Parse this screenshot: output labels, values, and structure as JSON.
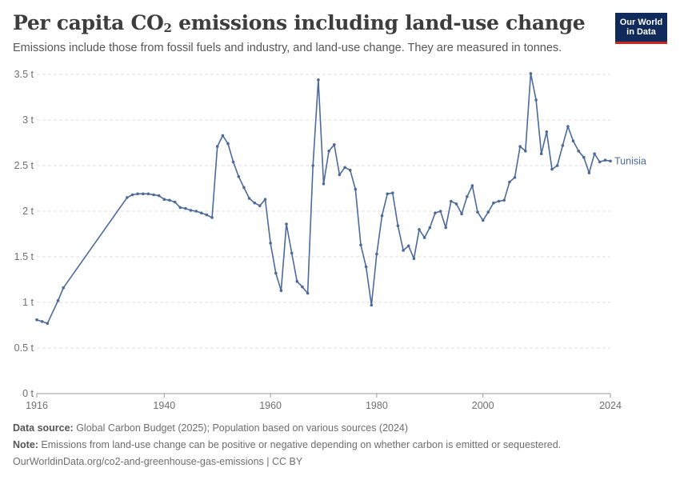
{
  "header": {
    "title_main": "Per capita CO",
    "title_sub": "2",
    "title_rest": " emissions including land-use change",
    "subtitle": "Emissions include those from fossil fuels and industry, and land-use change. They are measured in tonnes.",
    "logo_line1": "Our World",
    "logo_line2": "in Data"
  },
  "footer": {
    "source_label": "Data source:",
    "source_text": " Global Carbon Budget (2025); Population based on various sources (2024)",
    "note_label": "Note:",
    "note_text": " Emissions from land-use change can be positive or negative depending on whether carbon is emitted or sequestered.",
    "url_text": "OurWorldinData.org/co2-and-greenhouse-gas-emissions | CC BY"
  },
  "colors": {
    "series": "#4c6a9c",
    "grid": "#dddddd",
    "axis": "#6e6e6e",
    "logo_bg": "#102a5c",
    "logo_accent": "#ce261e"
  },
  "chart_data": {
    "type": "line",
    "title": "Per capita CO2 emissions including land-use change",
    "ylabel": "",
    "xlabel": "",
    "xlim": [
      1916,
      2024
    ],
    "ylim": [
      0,
      3.5
    ],
    "grid": "horizontal dashed",
    "y_ticks": [
      0,
      0.5,
      1,
      1.5,
      2,
      2.5,
      3,
      3.5
    ],
    "y_tick_labels": [
      "0 t",
      "0.5 t",
      "1 t",
      "1.5 t",
      "2 t",
      "2.5 t",
      "3 t",
      "3.5 t"
    ],
    "x_ticks": [
      1916,
      1940,
      1960,
      1980,
      2000,
      2024
    ],
    "x_tick_labels": [
      "1916",
      "1940",
      "1960",
      "1980",
      "2000",
      "2024"
    ],
    "series": [
      {
        "name": "Tunisia",
        "x": [
          1916,
          1917,
          1918,
          1920,
          1921,
          1933,
          1934,
          1935,
          1936,
          1937,
          1938,
          1939,
          1940,
          1941,
          1942,
          1943,
          1944,
          1945,
          1946,
          1947,
          1948,
          1949,
          1950,
          1951,
          1952,
          1953,
          1954,
          1955,
          1956,
          1957,
          1958,
          1959,
          1960,
          1961,
          1962,
          1963,
          1964,
          1965,
          1966,
          1967,
          1968,
          1969,
          1970,
          1971,
          1972,
          1973,
          1974,
          1975,
          1976,
          1977,
          1978,
          1979,
          1980,
          1981,
          1982,
          1983,
          1984,
          1985,
          1986,
          1987,
          1988,
          1989,
          1990,
          1991,
          1992,
          1993,
          1994,
          1995,
          1996,
          1997,
          1998,
          1999,
          2000,
          2001,
          2002,
          2003,
          2004,
          2005,
          2006,
          2007,
          2008,
          2009,
          2010,
          2011,
          2012,
          2013,
          2014,
          2015,
          2016,
          2017,
          2018,
          2019,
          2020,
          2021,
          2022,
          2023,
          2024
        ],
        "y": [
          0.81,
          0.79,
          0.77,
          1.02,
          1.16,
          2.15,
          2.18,
          2.19,
          2.19,
          2.19,
          2.18,
          2.17,
          2.13,
          2.12,
          2.1,
          2.04,
          2.03,
          2.01,
          2.0,
          1.98,
          1.96,
          1.93,
          2.71,
          2.83,
          2.74,
          2.54,
          2.38,
          2.26,
          2.14,
          2.09,
          2.06,
          2.13,
          1.65,
          1.32,
          1.13,
          1.86,
          1.54,
          1.23,
          1.17,
          1.1,
          2.5,
          3.44,
          2.3,
          2.66,
          2.73,
          2.4,
          2.48,
          2.45,
          2.24,
          1.63,
          1.39,
          0.97,
          1.53,
          1.95,
          2.19,
          2.2,
          1.84,
          1.57,
          1.62,
          1.48,
          1.8,
          1.71,
          1.82,
          1.98,
          2.0,
          1.82,
          2.11,
          2.08,
          1.97,
          2.16,
          2.28,
          1.99,
          1.9,
          1.99,
          2.09,
          2.11,
          2.12,
          2.32,
          2.37,
          2.71,
          2.66,
          3.51,
          3.22,
          2.63,
          2.87,
          2.46,
          2.5,
          2.72,
          2.93,
          2.77,
          2.66,
          2.59,
          2.42,
          2.63,
          2.54,
          2.56,
          2.55
        ]
      }
    ]
  }
}
